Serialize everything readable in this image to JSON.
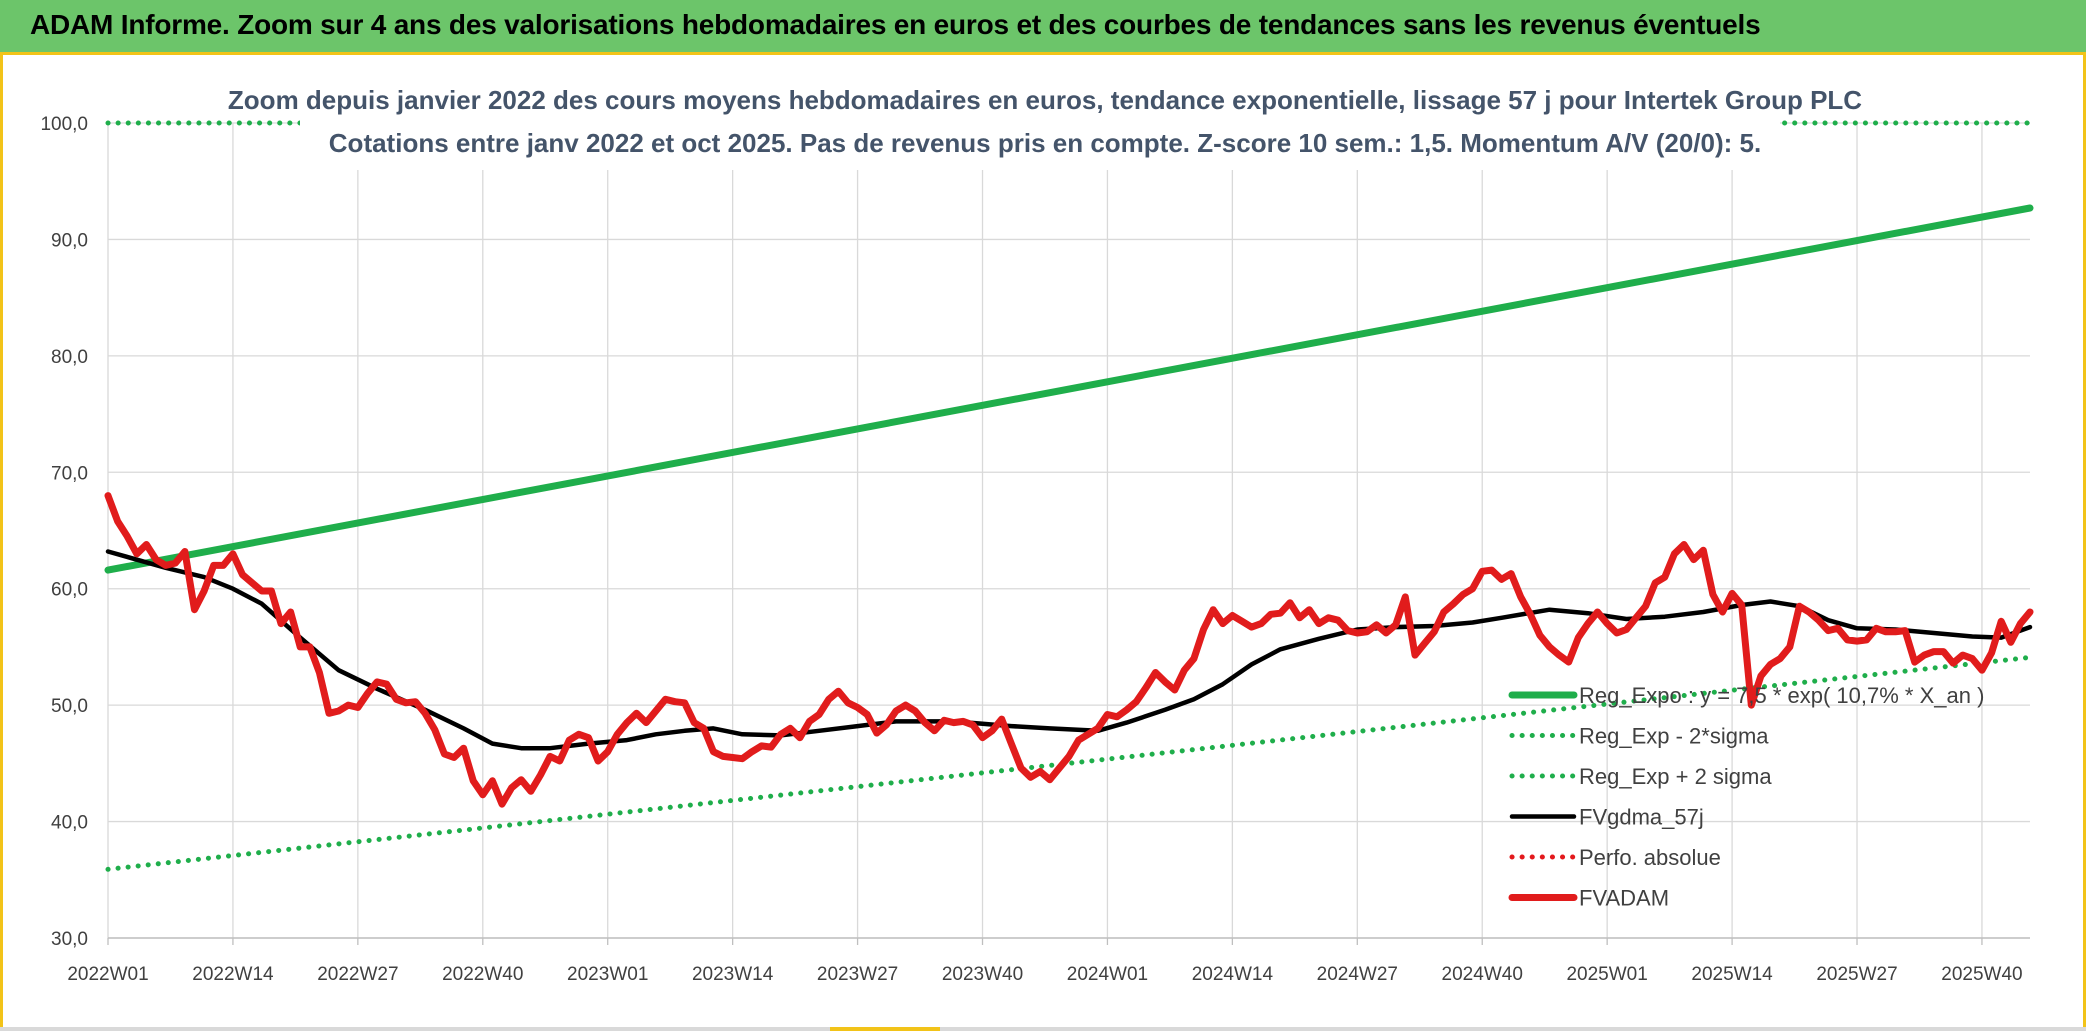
{
  "banner": {
    "title": "ADAM Informe. Zoom sur 4 ans des valorisations hebdomadaires en euros et des courbes de tendances sans les revenus éventuels"
  },
  "chart_data": {
    "type": "line",
    "title": "Zoom depuis janvier 2022 des cours moyens hebdomadaires en euros, tendance exponentielle, lissage 57 j pour Intertek Group PLC",
    "subtitle": "Cotations entre janv 2022 et oct 2025. Pas de revenus pris en compte. Z-score 10 sem.: 1,5. Momentum A/V (20/0): 5.",
    "xlabel": "",
    "ylabel": "",
    "ylim": [
      30,
      100
    ],
    "yticks": [
      "30,0",
      "40,0",
      "50,0",
      "60,0",
      "70,0",
      "80,0",
      "90,0",
      "100,0"
    ],
    "x_ticks": [
      "2022W01",
      "2022W14",
      "2022W27",
      "2022W40",
      "2023W01",
      "2023W14",
      "2023W27",
      "2023W40",
      "2024W01",
      "2024W14",
      "2024W27",
      "2024W40",
      "2025W01",
      "2025W14",
      "2025W27",
      "2025W40"
    ],
    "n_weeks": 201,
    "grid": true,
    "legend_position": "right",
    "series": [
      {
        "name": "Reg_Expo : y = 7,5 * exp( 10,7% *  X_an )",
        "color": "#1fae4b",
        "style": "solid-thick",
        "points": [
          [
            0,
            61.6
          ],
          [
            200,
            92.7
          ]
        ]
      },
      {
        "name": "Reg_Exp - 2*sigma",
        "color": "#1fae4b",
        "style": "dotted",
        "points": [
          [
            0,
            35.9
          ],
          [
            200,
            54.1
          ]
        ]
      },
      {
        "name": "Reg_Exp + 2 sigma",
        "color": "#1fae4b",
        "style": "dotted",
        "points": [
          [
            0,
            100.0
          ],
          [
            200,
            100.0
          ]
        ]
      },
      {
        "name": "FVgdma_57j",
        "color": "#000000",
        "style": "solid",
        "points": [
          [
            0,
            63.2
          ],
          [
            6,
            61.8
          ],
          [
            10,
            61.0
          ],
          [
            13,
            60.0
          ],
          [
            16,
            58.7
          ],
          [
            20,
            55.8
          ],
          [
            24,
            53.0
          ],
          [
            28,
            51.4
          ],
          [
            33,
            49.6
          ],
          [
            37,
            48.0
          ],
          [
            40,
            46.7
          ],
          [
            43,
            46.3
          ],
          [
            46,
            46.3
          ],
          [
            50,
            46.7
          ],
          [
            54,
            47.0
          ],
          [
            57,
            47.5
          ],
          [
            60,
            47.8
          ],
          [
            63,
            48.0
          ],
          [
            66,
            47.5
          ],
          [
            70,
            47.4
          ],
          [
            74,
            47.8
          ],
          [
            78,
            48.2
          ],
          [
            82,
            48.6
          ],
          [
            88,
            48.6
          ],
          [
            94,
            48.2
          ],
          [
            98,
            48.0
          ],
          [
            103,
            47.8
          ],
          [
            106,
            48.5
          ],
          [
            110,
            49.6
          ],
          [
            113,
            50.5
          ],
          [
            116,
            51.8
          ],
          [
            119,
            53.5
          ],
          [
            122,
            54.8
          ],
          [
            126,
            55.7
          ],
          [
            130,
            56.5
          ],
          [
            134,
            56.7
          ],
          [
            138,
            56.8
          ],
          [
            142,
            57.1
          ],
          [
            145,
            57.5
          ],
          [
            150,
            58.2
          ],
          [
            154,
            57.9
          ],
          [
            158,
            57.4
          ],
          [
            162,
            57.6
          ],
          [
            166,
            58.0
          ],
          [
            170,
            58.6
          ],
          [
            173,
            58.9
          ],
          [
            176,
            58.5
          ],
          [
            179,
            57.3
          ],
          [
            182,
            56.6
          ],
          [
            186,
            56.5
          ],
          [
            190,
            56.2
          ],
          [
            194,
            55.9
          ],
          [
            197,
            55.8
          ],
          [
            200,
            56.7
          ]
        ]
      },
      {
        "name": "Perfo. absolue",
        "color": "#e3191c",
        "style": "dotted",
        "points": []
      },
      {
        "name": "FVADAM",
        "color": "#e11c1c",
        "style": "solid-thick",
        "points": [
          [
            0,
            68.0
          ],
          [
            1,
            65.8
          ],
          [
            2,
            64.5
          ],
          [
            3,
            63.0
          ],
          [
            4,
            63.8
          ],
          [
            5,
            62.5
          ],
          [
            6,
            62.0
          ],
          [
            7,
            62.2
          ],
          [
            8,
            63.2
          ],
          [
            9,
            58.2
          ],
          [
            10,
            59.8
          ],
          [
            11,
            62.0
          ],
          [
            12,
            62.0
          ],
          [
            13,
            63.0
          ],
          [
            14,
            61.2
          ],
          [
            15,
            60.5
          ],
          [
            16,
            59.8
          ],
          [
            17,
            59.8
          ],
          [
            18,
            57.0
          ],
          [
            19,
            58.0
          ],
          [
            20,
            55.0
          ],
          [
            21,
            55.0
          ],
          [
            22,
            52.8
          ],
          [
            23,
            49.3
          ],
          [
            24,
            49.5
          ],
          [
            25,
            50.0
          ],
          [
            26,
            49.8
          ],
          [
            27,
            51.0
          ],
          [
            28,
            52.0
          ],
          [
            29,
            51.8
          ],
          [
            30,
            50.5
          ],
          [
            31,
            50.2
          ],
          [
            32,
            50.3
          ],
          [
            33,
            49.3
          ],
          [
            34,
            47.9
          ],
          [
            35,
            45.8
          ],
          [
            36,
            45.5
          ],
          [
            37,
            46.3
          ],
          [
            38,
            43.5
          ],
          [
            39,
            42.3
          ],
          [
            40,
            43.5
          ],
          [
            41,
            41.5
          ],
          [
            42,
            42.9
          ],
          [
            43,
            43.6
          ],
          [
            44,
            42.6
          ],
          [
            45,
            44.0
          ],
          [
            46,
            45.6
          ],
          [
            47,
            45.2
          ],
          [
            48,
            47.0
          ],
          [
            49,
            47.5
          ],
          [
            50,
            47.2
          ],
          [
            51,
            45.2
          ],
          [
            52,
            46.0
          ],
          [
            53,
            47.5
          ],
          [
            54,
            48.5
          ],
          [
            55,
            49.3
          ],
          [
            56,
            48.5
          ],
          [
            57,
            49.5
          ],
          [
            58,
            50.5
          ],
          [
            59,
            50.3
          ],
          [
            60,
            50.2
          ],
          [
            61,
            48.5
          ],
          [
            62,
            48.0
          ],
          [
            63,
            46.0
          ],
          [
            64,
            45.6
          ],
          [
            65,
            45.5
          ],
          [
            66,
            45.4
          ],
          [
            67,
            46.0
          ],
          [
            68,
            46.5
          ],
          [
            69,
            46.4
          ],
          [
            70,
            47.5
          ],
          [
            71,
            48.0
          ],
          [
            72,
            47.2
          ],
          [
            73,
            48.6
          ],
          [
            74,
            49.2
          ],
          [
            75,
            50.5
          ],
          [
            76,
            51.2
          ],
          [
            77,
            50.2
          ],
          [
            78,
            49.8
          ],
          [
            79,
            49.2
          ],
          [
            80,
            47.6
          ],
          [
            81,
            48.3
          ],
          [
            82,
            49.5
          ],
          [
            83,
            50.0
          ],
          [
            84,
            49.5
          ],
          [
            85,
            48.5
          ],
          [
            86,
            47.8
          ],
          [
            87,
            48.7
          ],
          [
            88,
            48.5
          ],
          [
            89,
            48.6
          ],
          [
            90,
            48.3
          ],
          [
            91,
            47.2
          ],
          [
            92,
            47.8
          ],
          [
            93,
            48.8
          ],
          [
            94,
            46.7
          ],
          [
            95,
            44.6
          ],
          [
            96,
            43.8
          ],
          [
            97,
            44.3
          ],
          [
            98,
            43.6
          ],
          [
            99,
            44.6
          ],
          [
            100,
            45.6
          ],
          [
            101,
            47.0
          ],
          [
            102,
            47.5
          ],
          [
            103,
            48.0
          ],
          [
            104,
            49.2
          ],
          [
            105,
            49.0
          ],
          [
            106,
            49.6
          ],
          [
            107,
            50.3
          ],
          [
            108,
            51.5
          ],
          [
            109,
            52.8
          ],
          [
            110,
            52.0
          ],
          [
            111,
            51.3
          ],
          [
            112,
            53.0
          ],
          [
            113,
            54.0
          ],
          [
            114,
            56.5
          ],
          [
            115,
            58.2
          ],
          [
            116,
            57.0
          ],
          [
            117,
            57.7
          ],
          [
            118,
            57.2
          ],
          [
            119,
            56.7
          ],
          [
            120,
            57.0
          ],
          [
            121,
            57.8
          ],
          [
            122,
            57.9
          ],
          [
            123,
            58.8
          ],
          [
            124,
            57.5
          ],
          [
            125,
            58.2
          ],
          [
            126,
            57.0
          ],
          [
            127,
            57.5
          ],
          [
            128,
            57.3
          ],
          [
            129,
            56.4
          ],
          [
            130,
            56.2
          ],
          [
            131,
            56.3
          ],
          [
            132,
            56.9
          ],
          [
            133,
            56.2
          ],
          [
            134,
            56.9
          ],
          [
            135,
            59.3
          ],
          [
            136,
            54.3
          ],
          [
            137,
            55.3
          ],
          [
            138,
            56.3
          ],
          [
            139,
            58.0
          ],
          [
            140,
            58.7
          ],
          [
            141,
            59.5
          ],
          [
            142,
            60.0
          ],
          [
            143,
            61.5
          ],
          [
            144,
            61.6
          ],
          [
            145,
            60.8
          ],
          [
            146,
            61.3
          ],
          [
            147,
            59.3
          ],
          [
            148,
            57.8
          ],
          [
            149,
            56.0
          ],
          [
            150,
            55.0
          ],
          [
            151,
            54.3
          ],
          [
            152,
            53.7
          ],
          [
            153,
            55.8
          ],
          [
            154,
            57.0
          ],
          [
            155,
            58.0
          ],
          [
            156,
            57.0
          ],
          [
            157,
            56.2
          ],
          [
            158,
            56.5
          ],
          [
            159,
            57.5
          ],
          [
            160,
            58.5
          ],
          [
            161,
            60.5
          ],
          [
            162,
            61.0
          ],
          [
            163,
            63.0
          ],
          [
            164,
            63.8
          ],
          [
            165,
            62.5
          ],
          [
            166,
            63.3
          ],
          [
            167,
            59.5
          ],
          [
            168,
            58.0
          ],
          [
            169,
            59.6
          ],
          [
            170,
            58.6
          ],
          [
            171,
            50.0
          ],
          [
            172,
            52.5
          ],
          [
            173,
            53.5
          ],
          [
            174,
            54.0
          ],
          [
            175,
            55.0
          ],
          [
            176,
            58.5
          ],
          [
            177,
            58.0
          ],
          [
            178,
            57.3
          ],
          [
            179,
            56.4
          ],
          [
            180,
            56.6
          ],
          [
            181,
            55.6
          ],
          [
            182,
            55.5
          ],
          [
            183,
            55.6
          ],
          [
            184,
            56.6
          ],
          [
            185,
            56.3
          ],
          [
            186,
            56.3
          ],
          [
            187,
            56.4
          ],
          [
            188,
            53.7
          ],
          [
            189,
            54.3
          ],
          [
            190,
            54.6
          ],
          [
            191,
            54.6
          ],
          [
            192,
            53.6
          ],
          [
            193,
            54.3
          ],
          [
            194,
            54.0
          ],
          [
            195,
            53.0
          ],
          [
            196,
            54.5
          ],
          [
            197,
            57.2
          ],
          [
            198,
            55.4
          ],
          [
            199,
            57.0
          ],
          [
            200,
            58.0
          ]
        ]
      }
    ]
  }
}
